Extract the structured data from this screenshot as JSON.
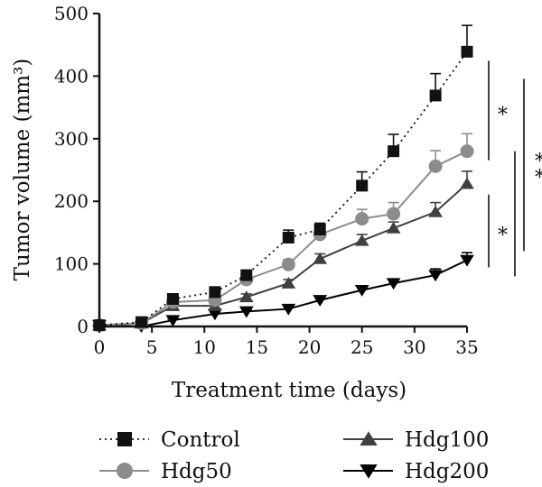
{
  "chart_data": {
    "type": "line",
    "xlabel": "Treatment time (days)",
    "ylabel": "Tumor volume (mm³)",
    "xlim": [
      0,
      35
    ],
    "ylim": [
      0,
      500
    ],
    "x_ticks": [
      0,
      5,
      10,
      15,
      20,
      25,
      30,
      35
    ],
    "y_ticks": [
      0,
      100,
      200,
      300,
      400,
      500
    ],
    "grid": false,
    "legend_position": "bottom",
    "x": [
      0,
      4,
      7,
      11,
      14,
      18,
      21,
      25,
      28,
      32,
      35
    ],
    "series": [
      {
        "name": "Control",
        "marker": "square",
        "line": "dotted",
        "color": "#111111",
        "values": [
          2,
          7,
          44,
          55,
          82,
          142,
          155,
          225,
          280,
          369,
          439
        ],
        "error": [
          0,
          2,
          4,
          5,
          6,
          12,
          10,
          22,
          27,
          35,
          42
        ]
      },
      {
        "name": "Hdg50",
        "marker": "circle",
        "line": "solid",
        "color": "#8c8c8c",
        "values": [
          2,
          5,
          39,
          42,
          75,
          99,
          147,
          172,
          180,
          256,
          280
        ],
        "error": [
          0,
          2,
          4,
          6,
          6,
          8,
          10,
          15,
          18,
          25,
          28
        ]
      },
      {
        "name": "Hdg100",
        "marker": "triangle-up",
        "line": "solid",
        "color": "#404040",
        "values": [
          2,
          5,
          33,
          33,
          47,
          69,
          108,
          137,
          157,
          183,
          228
        ],
        "error": [
          0,
          2,
          3,
          4,
          5,
          6,
          8,
          10,
          10,
          15,
          20
        ]
      },
      {
        "name": "Hdg200",
        "marker": "triangle-down",
        "line": "solid",
        "color": "#000000",
        "values": [
          2,
          0,
          10,
          20,
          24,
          28,
          42,
          58,
          69,
          82,
          106
        ],
        "error": [
          0,
          1,
          2,
          3,
          3,
          4,
          5,
          6,
          7,
          10,
          12
        ]
      }
    ],
    "significance": [
      {
        "label": "*",
        "between": [
          "Control",
          "Hdg50"
        ]
      },
      {
        "label": "*",
        "between": [
          "Hdg100",
          "Hdg200"
        ]
      },
      {
        "label": "**",
        "between": [
          "Control",
          "Hdg200"
        ]
      }
    ]
  }
}
